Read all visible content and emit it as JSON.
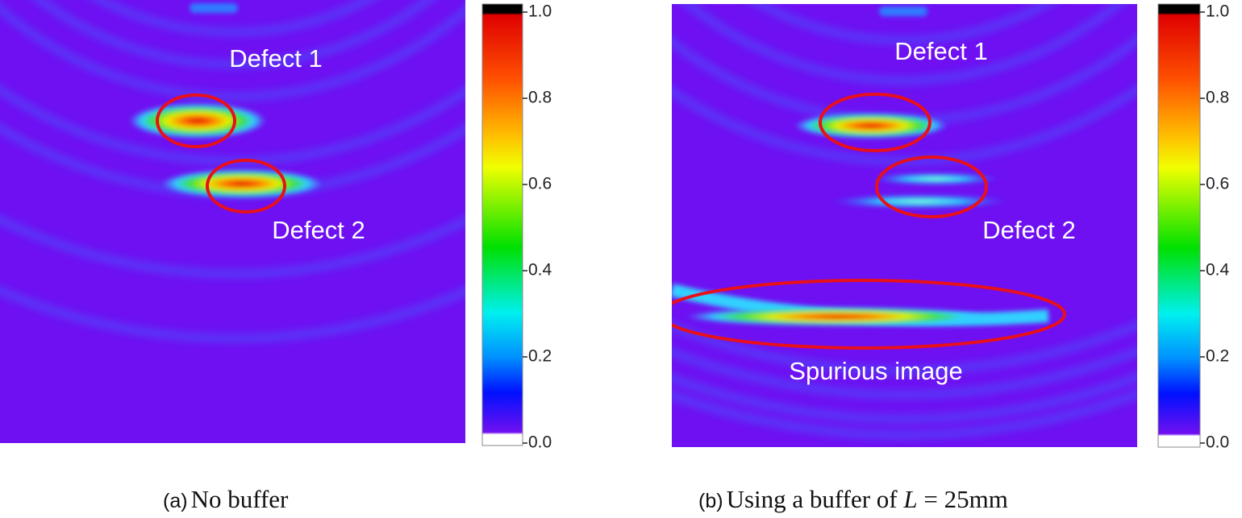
{
  "panels": [
    {
      "label": "(a)",
      "caption": [
        "No buffer"
      ],
      "annotations": [
        "Defect 1",
        "Defect 2"
      ],
      "colorbar": {
        "ticks": [
          "1.0",
          "0.8",
          "0.6",
          "0.4",
          "0.2",
          "0.0"
        ]
      }
    },
    {
      "label": "(b)",
      "caption": [
        "Using a buffer of ",
        "L",
        " = 25mm"
      ],
      "annotations": [
        "Defect 1",
        "Defect 2",
        "Spurious image"
      ],
      "colorbar": {
        "ticks": [
          "1.0",
          "0.8",
          "0.6",
          "0.4",
          "0.2",
          "0.0"
        ]
      }
    }
  ]
}
